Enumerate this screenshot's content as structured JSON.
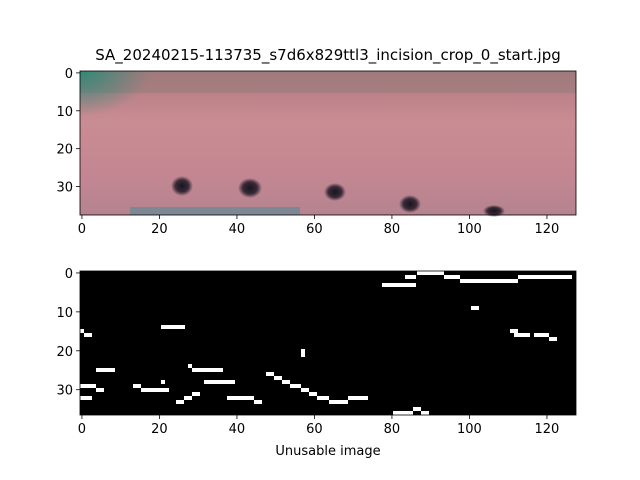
{
  "chart_data": [
    {
      "type": "image",
      "title": "SA_20240215-113735_s7d6x829ttl3_incision_crop_0_start.jpg",
      "xlim": [
        -0.5,
        127.5
      ],
      "ylim": [
        37.5,
        -0.5
      ],
      "xticks": [
        0,
        20,
        40,
        60,
        80,
        100,
        120
      ],
      "yticks": [
        0,
        10,
        20,
        30
      ]
    },
    {
      "type": "image",
      "xlabel": "Unusable image",
      "xlim": [
        -0.5,
        127.5
      ],
      "ylim": [
        36.5,
        -0.5
      ],
      "xticks": [
        0,
        20,
        40,
        60,
        80,
        100,
        120
      ],
      "yticks": [
        0,
        10,
        20,
        30
      ]
    }
  ]
}
